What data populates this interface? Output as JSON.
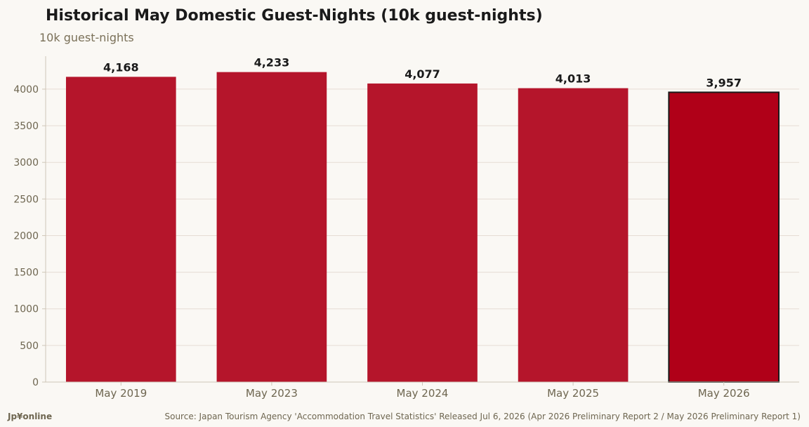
{
  "chart_data": {
    "type": "bar",
    "title": "Historical May Domestic Guest-Nights (10k guest-nights)",
    "subtitle": "10k guest-nights",
    "xlabel": "",
    "ylabel": "",
    "categories": [
      "May 2019",
      "May 2023",
      "May 2024",
      "May 2025",
      "May 2026"
    ],
    "values": [
      4168,
      4233,
      4077,
      4013,
      3957
    ],
    "value_labels": [
      "4,168",
      "4,233",
      "4,077",
      "4,013",
      "3,957"
    ],
    "highlight_index": 4,
    "ylim": [
      0,
      4450
    ],
    "yticks": [
      0,
      500,
      1000,
      1500,
      2000,
      2500,
      3000,
      3500,
      4000
    ],
    "grid": true,
    "colors": {
      "bar": "#b5152b",
      "highlight_bar": "#b00018",
      "highlight_outline": "#1a1a1a",
      "grid": "#e6dcd4",
      "axis": "#cfc6b8",
      "background": "#faf8f4"
    }
  },
  "footer": {
    "brand": "Jp¥online",
    "source": "Source: Japan Tourism Agency 'Accommodation Travel Statistics' Released Jul 6, 2026 (Apr 2026 Preliminary Report 2 / May 2026 Preliminary Report 1)"
  }
}
